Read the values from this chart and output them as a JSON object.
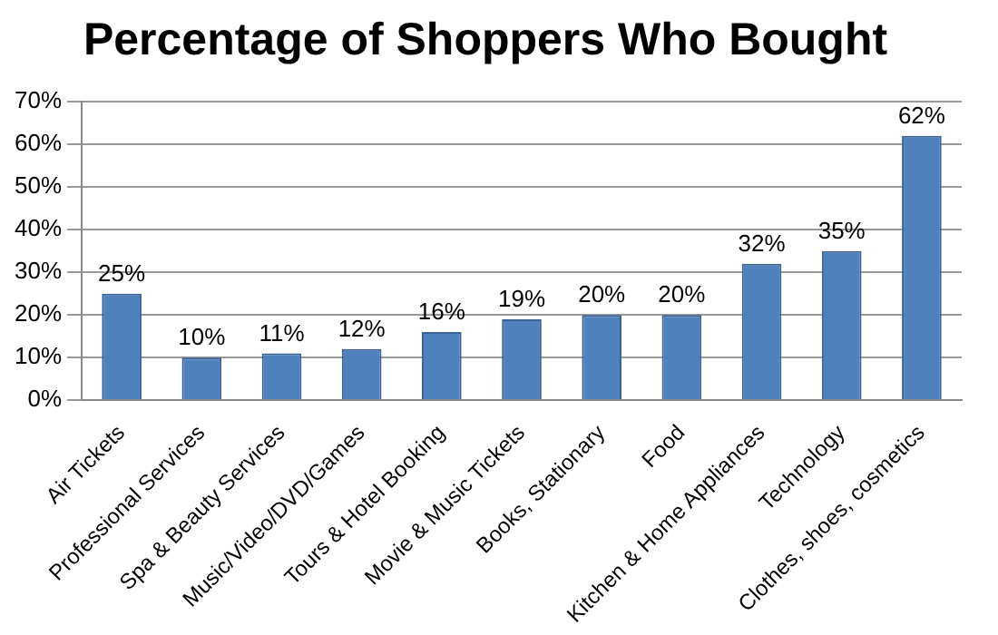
{
  "chart_data": {
    "type": "bar",
    "title": "Percentage of Shoppers Who Bought",
    "categories": [
      "Air Tickets",
      "Professional Services",
      "Spa & Beauty Services",
      "Music/Video/DVD/Games",
      "Tours & Hotel Booking",
      "Movie & Music Tickets",
      "Books, Stationary",
      "Food",
      "Kitchen & Home Appliances",
      "Technology",
      "Clothes, shoes, cosmetics"
    ],
    "values": [
      25,
      10,
      11,
      12,
      16,
      19,
      20,
      20,
      32,
      35,
      62
    ],
    "value_labels": [
      "25%",
      "10%",
      "11%",
      "12%",
      "16%",
      "19%",
      "20%",
      "20%",
      "32%",
      "35%",
      "62%"
    ],
    "color": "#4f81bd",
    "ylim": [
      0,
      70
    ],
    "yticks": [
      {
        "value": 0,
        "label": "0%"
      },
      {
        "value": 10,
        "label": "10%"
      },
      {
        "value": 20,
        "label": "20%"
      },
      {
        "value": 30,
        "label": "30%"
      },
      {
        "value": 40,
        "label": "40%"
      },
      {
        "value": 50,
        "label": "50%"
      },
      {
        "value": 60,
        "label": "60%"
      },
      {
        "value": 70,
        "label": "70%"
      }
    ],
    "grid": "y",
    "legend": false
  }
}
